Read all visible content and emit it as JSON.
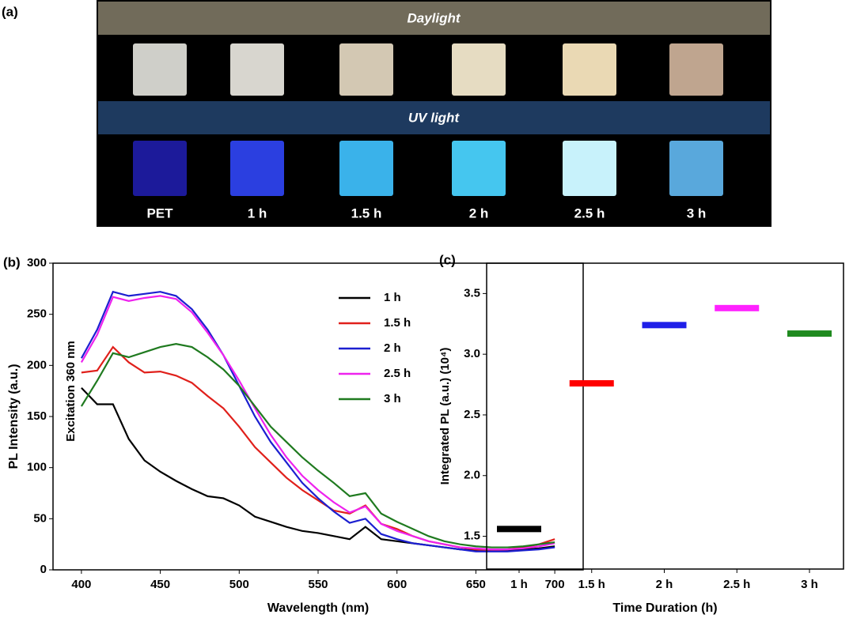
{
  "photo_panel": {
    "label": "(a)",
    "daylight": "Daylight",
    "uv_light": "UV light",
    "samples": [
      "PET",
      "1 h",
      "1.5 h",
      "2 h",
      "2.5 h",
      "3 h"
    ]
  },
  "chart_data": [
    {
      "type": "line",
      "panel_label": "(b)",
      "x_label": "Wavelength (nm)",
      "y_label": "PL Intensity (a.u.)",
      "annotation": "Excitation 360 nm",
      "x": [
        400,
        410,
        420,
        430,
        440,
        450,
        460,
        470,
        480,
        490,
        500,
        510,
        520,
        530,
        540,
        550,
        560,
        570,
        580,
        590,
        600,
        610,
        620,
        630,
        640,
        650,
        660,
        670,
        680,
        690,
        700
      ],
      "series": [
        {
          "name": "1 h",
          "color": "#000000",
          "values": [
            178,
            162,
            162,
            128,
            107,
            96,
            87,
            79,
            72,
            70,
            63,
            52,
            47,
            42,
            38,
            36,
            33,
            30,
            42,
            30,
            28,
            26,
            24,
            22,
            20,
            19,
            19,
            19,
            20,
            21,
            23
          ]
        },
        {
          "name": "1.5 h",
          "color": "#e0201b",
          "values": [
            193,
            195,
            218,
            203,
            193,
            194,
            190,
            183,
            170,
            158,
            140,
            120,
            105,
            90,
            78,
            68,
            58,
            55,
            63,
            45,
            40,
            33,
            28,
            25,
            22,
            20,
            19,
            20,
            22,
            25,
            30
          ]
        },
        {
          "name": "2 h",
          "color": "#1c1fd0",
          "values": [
            207,
            235,
            272,
            268,
            270,
            272,
            268,
            255,
            235,
            210,
            180,
            150,
            125,
            105,
            85,
            70,
            57,
            46,
            50,
            35,
            30,
            26,
            24,
            22,
            20,
            18,
            18,
            18,
            19,
            20,
            22
          ]
        },
        {
          "name": "2.5 h",
          "color": "#ee22ee",
          "values": [
            203,
            230,
            267,
            263,
            266,
            268,
            265,
            252,
            232,
            210,
            185,
            158,
            132,
            110,
            92,
            78,
            66,
            56,
            62,
            45,
            38,
            33,
            28,
            25,
            22,
            21,
            20,
            20,
            21,
            23,
            26
          ]
        },
        {
          "name": "3 h",
          "color": "#1f7a1f",
          "values": [
            160,
            185,
            212,
            208,
            213,
            218,
            221,
            218,
            208,
            196,
            180,
            160,
            140,
            125,
            110,
            97,
            85,
            72,
            75,
            55,
            47,
            40,
            33,
            28,
            25,
            23,
            22,
            22,
            23,
            25,
            27
          ]
        }
      ],
      "xlim": [
        382,
        718
      ],
      "ylim": [
        0,
        300
      ],
      "xticks": [
        400,
        450,
        500,
        550,
        600,
        650,
        700
      ],
      "yticks": [
        0,
        50,
        100,
        150,
        200,
        250,
        300
      ],
      "legend": "upper right"
    },
    {
      "type": "dash",
      "panel_label": "(c)",
      "x_label": "Time Duration (h)",
      "y_label": "Integrated PL (a.u.) (10⁴)",
      "categories": [
        "1 h",
        "1.5 h",
        "2 h",
        "2.5 h",
        "3 h"
      ],
      "values": [
        1.56,
        2.76,
        3.24,
        3.38,
        3.17
      ],
      "colors": [
        "#000000",
        "#ff0000",
        "#1f1fe8",
        "#ff22ff",
        "#1f8a1f"
      ],
      "ylim": [
        1.23,
        3.75
      ],
      "yticks": [
        {
          "value": 1.5,
          "label": "1.5"
        },
        {
          "value": 2.0,
          "label": "2.0"
        },
        {
          "value": 2.5,
          "label": "2.5"
        },
        {
          "value": 3.0,
          "label": "3.0"
        },
        {
          "value": 3.5,
          "label": "3.5"
        }
      ]
    }
  ]
}
